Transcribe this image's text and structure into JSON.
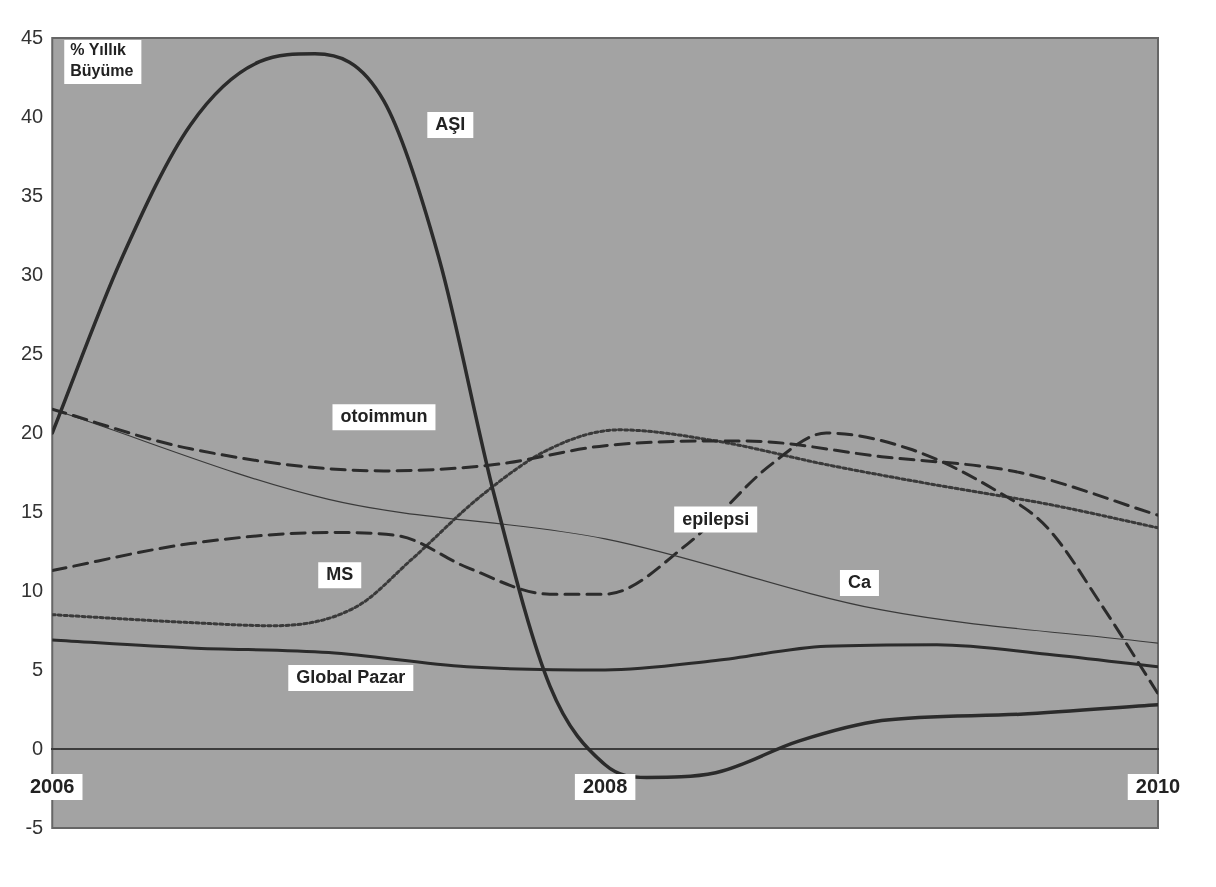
{
  "chart_data": {
    "type": "line",
    "ylabel": "% Yıllık Büyüme",
    "xlim": [
      2006,
      2010
    ],
    "xticks": [
      2006,
      2008,
      2010
    ],
    "ylim": [
      -5,
      45
    ],
    "yticks": [
      -5,
      0,
      5,
      10,
      15,
      20,
      25,
      30,
      35,
      40,
      45
    ],
    "grid": false,
    "legend": false,
    "marker": "none",
    "series": [
      {
        "name": "AŞI",
        "color": "#2b2b2b",
        "line_style": "solid",
        "x": [
          2006,
          2006.25,
          2006.5,
          2006.75,
          2006.95,
          2007.2,
          2007.4,
          2007.6,
          2007.8,
          2008,
          2008.15,
          2008.4,
          2008.7,
          2009,
          2009.5,
          2010
        ],
        "values": [
          20,
          31,
          39.5,
          43.5,
          44,
          41,
          31,
          16,
          4,
          -1,
          -1.8,
          -1.5,
          0.5,
          1.8,
          2.2,
          2.8
        ]
      },
      {
        "name": "otoimmun",
        "color": "#2b2b2b",
        "line_style": "dashed",
        "x": [
          2006,
          2006.5,
          2007.2,
          2007.6,
          2008,
          2008.5,
          2009,
          2009.5,
          2010
        ],
        "values": [
          21.5,
          19,
          17.6,
          18,
          19.2,
          19.5,
          18.5,
          17.5,
          14.8
        ]
      },
      {
        "name": "Ca",
        "color": "#3a3a3a",
        "line_style": "solid",
        "x": [
          2006,
          2007,
          2008,
          2009,
          2010
        ],
        "values": [
          21.5,
          15.8,
          13.3,
          8.8,
          6.7
        ]
      },
      {
        "name": "epilepsi",
        "color": "#2b2b2b",
        "line_style": "dashed",
        "x": [
          2006,
          2006.5,
          2007,
          2007.25,
          2007.5,
          2007.8,
          2008,
          2008.3,
          2008.6,
          2008.8,
          2009.1,
          2009.4,
          2009.6,
          2009.8,
          2010
        ],
        "values": [
          11.3,
          13,
          13.7,
          13.5,
          11.5,
          9.8,
          9.8,
          13,
          18,
          20,
          19,
          16.5,
          14,
          9,
          3.5
        ]
      },
      {
        "name": "MS",
        "color": "#3a3a3a",
        "line_style": "dotted",
        "x": [
          2006,
          2006.5,
          2006.8,
          2007.1,
          2007.3,
          2007.55,
          2007.8,
          2008.05,
          2008.4,
          2008.8,
          2009.2,
          2009.6,
          2010
        ],
        "values": [
          8.5,
          8,
          7.8,
          9,
          12,
          16,
          19,
          20.2,
          19.5,
          18,
          16.7,
          15.5,
          14
        ]
      },
      {
        "name": "Global Pazar",
        "color": "#2b2b2b",
        "line_style": "solid",
        "x": [
          2006,
          2006.5,
          2007,
          2007.5,
          2008,
          2008.4,
          2008.8,
          2009.2,
          2009.6,
          2010
        ],
        "values": [
          6.9,
          6.4,
          6.1,
          5.2,
          5,
          5.6,
          6.5,
          6.6,
          6,
          5.2
        ]
      }
    ]
  }
}
